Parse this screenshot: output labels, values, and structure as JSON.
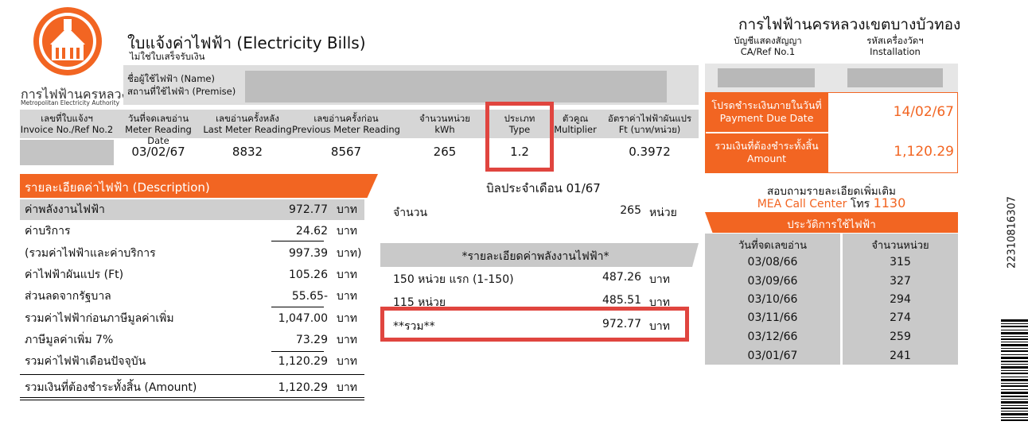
{
  "brand": {
    "org_th": "การไฟฟ้านครหลวง",
    "org_en": "Metropolitan Electricity Authority",
    "logo_number": "1",
    "colors": {
      "orange": "#f26522",
      "grey": "#c9c9c9",
      "highlight_red": "#e0453f"
    }
  },
  "header": {
    "title": "ใบแจ้งค่าไฟฟ้า (Electricity Bills)",
    "subtitle": "ไม่ใช่ใบเสร็จรับเงิน",
    "name_label": "ชื่อผู้ใช้ไฟฟ้า (Name)",
    "premise_label": "สถานที่ใช้ไฟฟ้า (Premise)",
    "branch": "การไฟฟ้านครหลวงเขตบางบัวทอง",
    "ca_label_th": "บัญชีแสดงสัญญา",
    "ca_label_en": "CA/Ref No.1",
    "install_label_th": "รหัสเครื่องวัดฯ",
    "install_label_en": "Installation"
  },
  "meter_table": {
    "headers": [
      {
        "th": "เลขที่ใบแจ้งฯ",
        "en": "Invoice No./Ref No.2"
      },
      {
        "th": "วันที่จดเลขอ่าน",
        "en": "Meter Reading Date"
      },
      {
        "th": "เลขอ่านครั้งหลัง",
        "en": "Last Meter Reading"
      },
      {
        "th": "เลขอ่านครั้งก่อน",
        "en": "Previous Meter Reading"
      },
      {
        "th": "จำนวนหน่วย",
        "en": "kWh"
      },
      {
        "th": "ประเภท",
        "en": "Type"
      },
      {
        "th": "ตัวคูณ",
        "en": "Multiplier"
      },
      {
        "th": "อัตราค่าไฟฟ้าผันแปร",
        "en": "Ft (บาท/หน่วย)"
      }
    ],
    "values": {
      "reading_date": "03/02/67",
      "last_reading": "8832",
      "previous_reading": "8567",
      "kwh": "265",
      "type": "1.2",
      "multiplier": "",
      "ft": "0.3972"
    }
  },
  "payment": {
    "due_label_th": "โปรดชำระเงินภายในวันที่",
    "due_label_en": "Payment Due Date",
    "due_value": "14/02/67",
    "amount_label_th": "รวมเงินที่ต้องชำระทั้งสิ้น",
    "amount_label_en": "Amount",
    "amount_value": "1,120.29"
  },
  "description": {
    "title": "รายละเอียดค่าไฟฟ้า (Description)",
    "rows": [
      {
        "label": "ค่าพลังงานไฟฟ้า",
        "value": "972.77",
        "unit": "บาท"
      },
      {
        "label": "ค่าบริการ",
        "value": "24.62",
        "unit": "บาท"
      },
      {
        "label": "(รวมค่าไฟฟ้าและค่าบริการ",
        "value": "997.39",
        "unit": "บาท)"
      },
      {
        "label": "ค่าไฟฟ้าผันแปร (Ft)",
        "value": "105.26",
        "unit": "บาท"
      },
      {
        "label": "ส่วนลดจากรัฐบาล",
        "value": "55.65-",
        "unit": "บาท"
      },
      {
        "label": "รวมค่าไฟฟ้าก่อนภาษีมูลค่าเพิ่ม",
        "value": "1,047.00",
        "unit": "บาท"
      },
      {
        "label": "ภาษีมูลค่าเพิ่ม 7%",
        "value": "73.29",
        "unit": "บาท"
      },
      {
        "label": "รวมค่าไฟฟ้าเดือนปัจจุบัน",
        "value": "1,120.29",
        "unit": "บาท"
      }
    ],
    "total": {
      "label": "รวมเงินที่ต้องชำระทั้งสิ้น (Amount)",
      "value": "1,120.29",
      "unit": "บาท"
    }
  },
  "bill_month": {
    "title": "บิลประจำเดือน 01/67",
    "units_label": "จำนวน",
    "units_value": "265",
    "units_unit": "หน่วย",
    "energy_header": "*รายละเอียดค่าพลังงานไฟฟ้า*",
    "tiers": [
      {
        "label": "150 หน่วย แรก (1-150)",
        "value": "487.26",
        "unit": "บาท"
      },
      {
        "label": "115 หน่วย",
        "value": "485.51",
        "unit": "บาท"
      }
    ],
    "sum": {
      "label": "**รวม**",
      "value": "972.77",
      "unit": "บาท"
    }
  },
  "contact": {
    "inquiry": "สอบถามรายละเอียดเพิ่มเติม",
    "call_center": "MEA Call Center",
    "phone_prefix": "โทร",
    "phone_number": "1130"
  },
  "history": {
    "title": "ประวัติการใช้ไฟฟ้า",
    "col_date": "วันที่จดเลขอ่าน",
    "col_units": "จำนวนหน่วย",
    "rows": [
      {
        "date": "03/08/66",
        "units": "315"
      },
      {
        "date": "03/09/66",
        "units": "327"
      },
      {
        "date": "03/10/66",
        "units": "294"
      },
      {
        "date": "03/11/66",
        "units": "274"
      },
      {
        "date": "03/12/66",
        "units": "259"
      },
      {
        "date": "03/01/67",
        "units": "241"
      }
    ]
  },
  "barcode": {
    "number": "22310816307"
  }
}
